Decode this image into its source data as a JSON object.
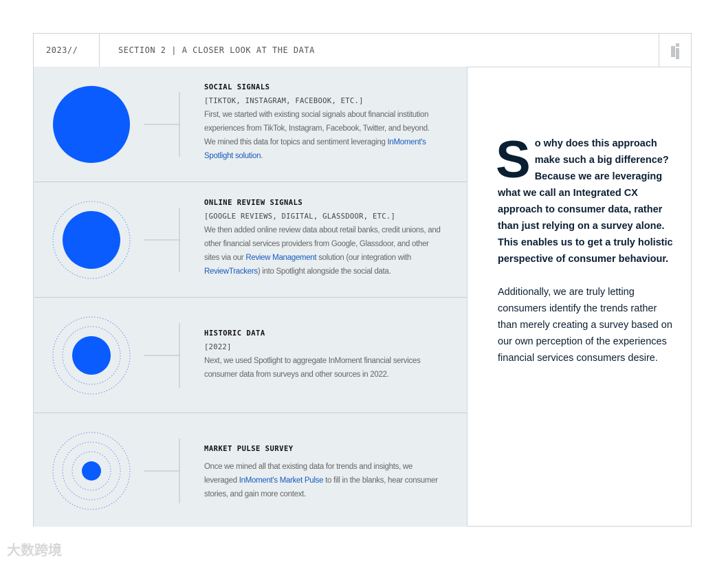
{
  "header": {
    "year": "2023//",
    "section": "SECTION 2 | A CLOSER LOOK AT THE DATA",
    "logo": "i"
  },
  "accent": "#0a5cff",
  "rows": [
    {
      "title": "SOCIAL SIGNALS",
      "sub": "[TIKTOK, INSTAGRAM, FACEBOOK, ETC.]",
      "b1": "First, we started with existing social signals about financial institution experiences from TikTok, Instagram, Facebook, Twitter, and beyond. We mined this data for topics and sentiment leveraging ",
      "l1": "InMoment's Spotlight solution",
      "b2": "."
    },
    {
      "title": "ONLINE REVIEW SIGNALS",
      "sub": "[GOOGLE REVIEWS, DIGITAL, GLASSDOOR, ETC.]",
      "b1": "We then added online review data about retail banks, credit unions, and other financial services providers from Google, Glassdoor, and other sites via our ",
      "l1": "Review Management",
      "b2": " solution (our integration with ",
      "l2": "ReviewTrackers",
      "b3": ") into Spotlight alongside the social data."
    },
    {
      "title": "HISTORIC DATA",
      "sub": "[2022]",
      "b1": "Next, we used Spotlight to aggregate InMoment financial services consumer data from surveys and other sources in 2022."
    },
    {
      "title": "MARKET PULSE SURVEY",
      "b1": "Once we mined all that existing data for trends and insights, we leveraged ",
      "l1": "InMoment's Market Pulse",
      "b2": " to fill in the blanks, hear consumer stories, and gain more context."
    }
  ],
  "right": {
    "dropcap": "S",
    "lead": "o why does this approach make such a big difference? Because we are leveraging what we call an Integrated CX approach to consumer data, rather than just relying on a survey alone. This enables us to get a truly holistic perspective of consumer behaviour.",
    "para": "Additionally, we are truly letting consumers identify the trends rather than merely creating a survey based on our own perception of the experiences financial services consumers desire."
  },
  "watermark": "大数跨境"
}
